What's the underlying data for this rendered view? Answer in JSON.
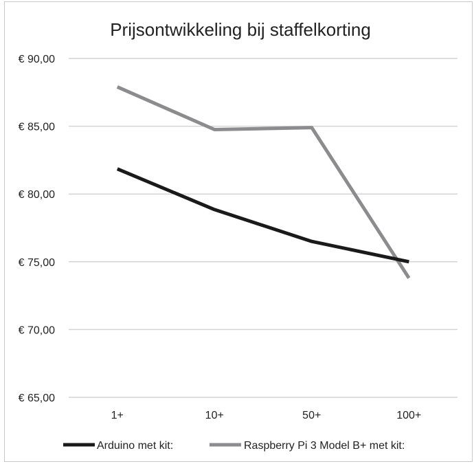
{
  "chart_data": {
    "type": "line",
    "title": "Prijsontwikkeling bij staffelkorting",
    "xlabel": "",
    "ylabel": "",
    "categories": [
      "1+",
      "10+",
      "50+",
      "100+"
    ],
    "ylim": [
      65,
      90
    ],
    "yticks": [
      90,
      85,
      80,
      75,
      70,
      65
    ],
    "ytick_labels": [
      "€ 90,00",
      "€ 85,00",
      "€ 80,00",
      "€ 75,00",
      "€ 70,00",
      "€ 65,00"
    ],
    "grid": true,
    "legend_position": "bottom",
    "series": [
      {
        "name": "Arduino met kit:",
        "values": [
          81.85,
          78.85,
          76.5,
          75.0
        ],
        "color": "#1a1a1a"
      },
      {
        "name": "Raspberry Pi 3 Model B+ met kit:",
        "values": [
          87.9,
          84.75,
          84.9,
          73.8
        ],
        "color": "#8c8c8e"
      }
    ],
    "gridline_color": "#d4d4d4"
  }
}
